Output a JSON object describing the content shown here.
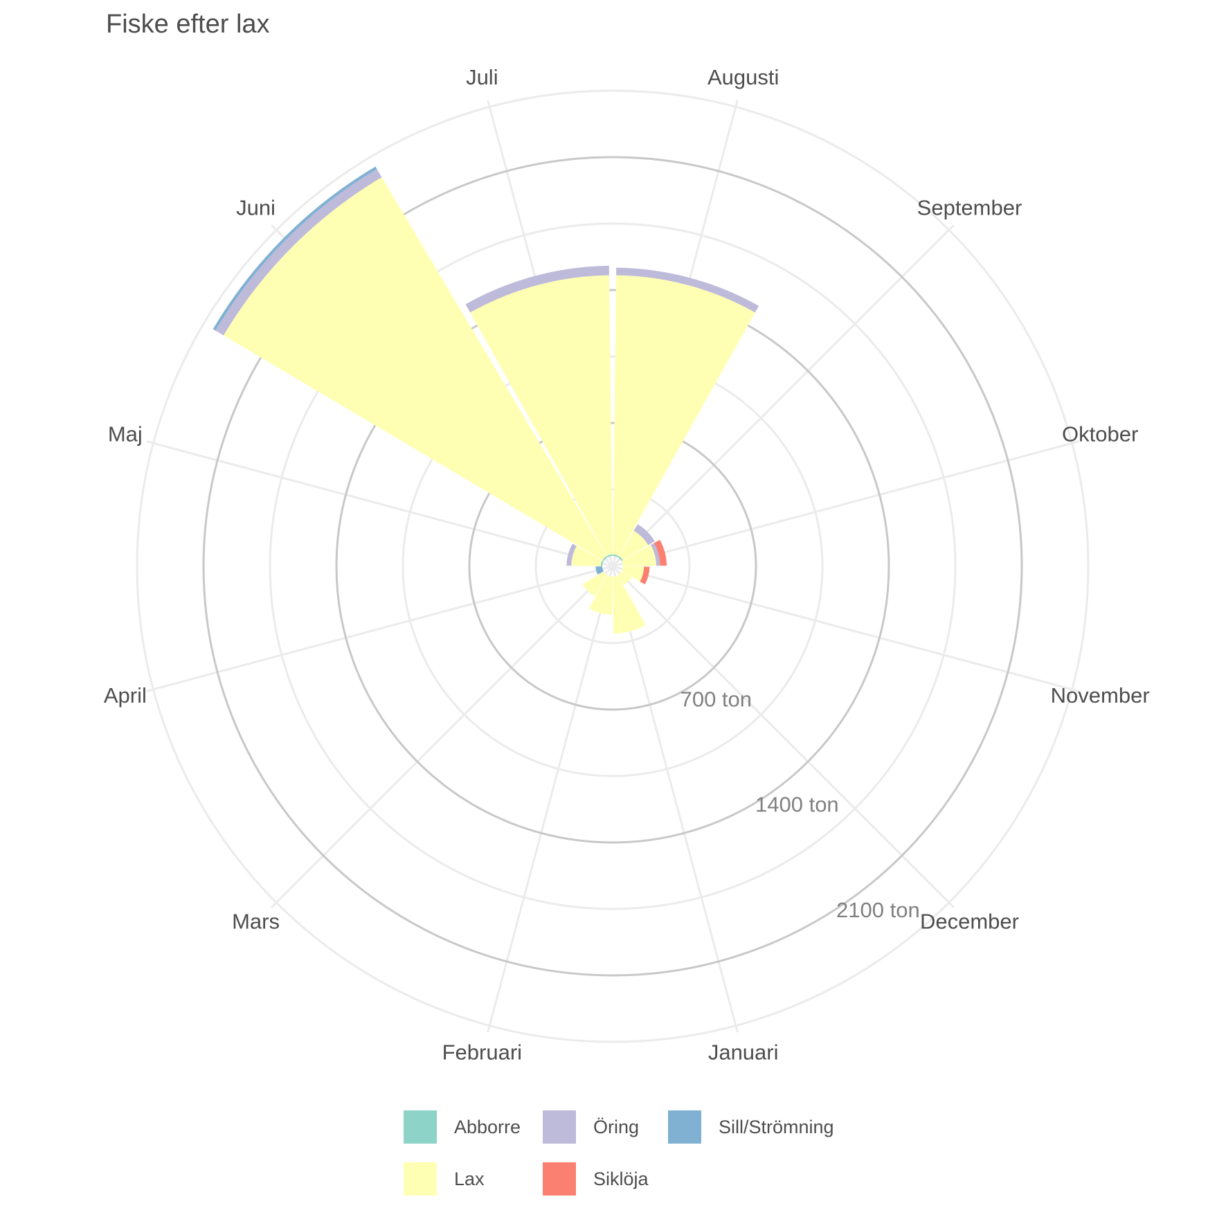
{
  "chart_data": {
    "type": "stacked-polar-bar",
    "title": "Fiske efter lax",
    "xlabel": "",
    "ylabel": "",
    "categories": [
      "Januari",
      "Februari",
      "Mars",
      "April",
      "Maj",
      "Juni",
      "Juli",
      "Augusti",
      "September",
      "Oktober",
      "November",
      "December"
    ],
    "series": [
      {
        "name": "Abborre",
        "color": "#8DD3C7",
        "values": [
          0,
          0,
          0,
          0,
          8,
          8,
          8,
          8,
          8,
          0,
          0,
          0
        ]
      },
      {
        "name": "Lax",
        "color": "#FFFFB3",
        "values": [
          300,
          200,
          130,
          0,
          155,
          2320,
          1470,
          1470,
          155,
          175,
          110,
          60
        ]
      },
      {
        "name": "Öring",
        "color": "#BEBADA",
        "values": [
          0,
          0,
          0,
          0,
          25,
          50,
          50,
          40,
          40,
          20,
          0,
          0
        ]
      },
      {
        "name": "Siklöja",
        "color": "#FB8072",
        "values": [
          0,
          0,
          0,
          0,
          0,
          0,
          0,
          0,
          0,
          35,
          30,
          0
        ]
      },
      {
        "name": "Sill/Strömning",
        "color": "#80B1D3",
        "values": [
          0,
          0,
          0,
          35,
          0,
          15,
          0,
          0,
          0,
          0,
          0,
          0
        ]
      }
    ],
    "y_breaks": [
      700,
      1400,
      2100
    ],
    "y_break_labels": [
      "700 ton",
      "1400 ton",
      "2100 ton"
    ],
    "ylim": [
      0,
      2900
    ],
    "grid": true,
    "legend_position": "bottom"
  },
  "legend": {
    "items": [
      {
        "label": "Abborre",
        "color": "#8DD3C7"
      },
      {
        "label": "Öring",
        "color": "#BEBADA"
      },
      {
        "label": "Sill/Strömning",
        "color": "#80B1D3"
      },
      {
        "label": "Lax",
        "color": "#FFFFB3"
      },
      {
        "label": "Siklöja",
        "color": "#FB8072"
      }
    ]
  }
}
